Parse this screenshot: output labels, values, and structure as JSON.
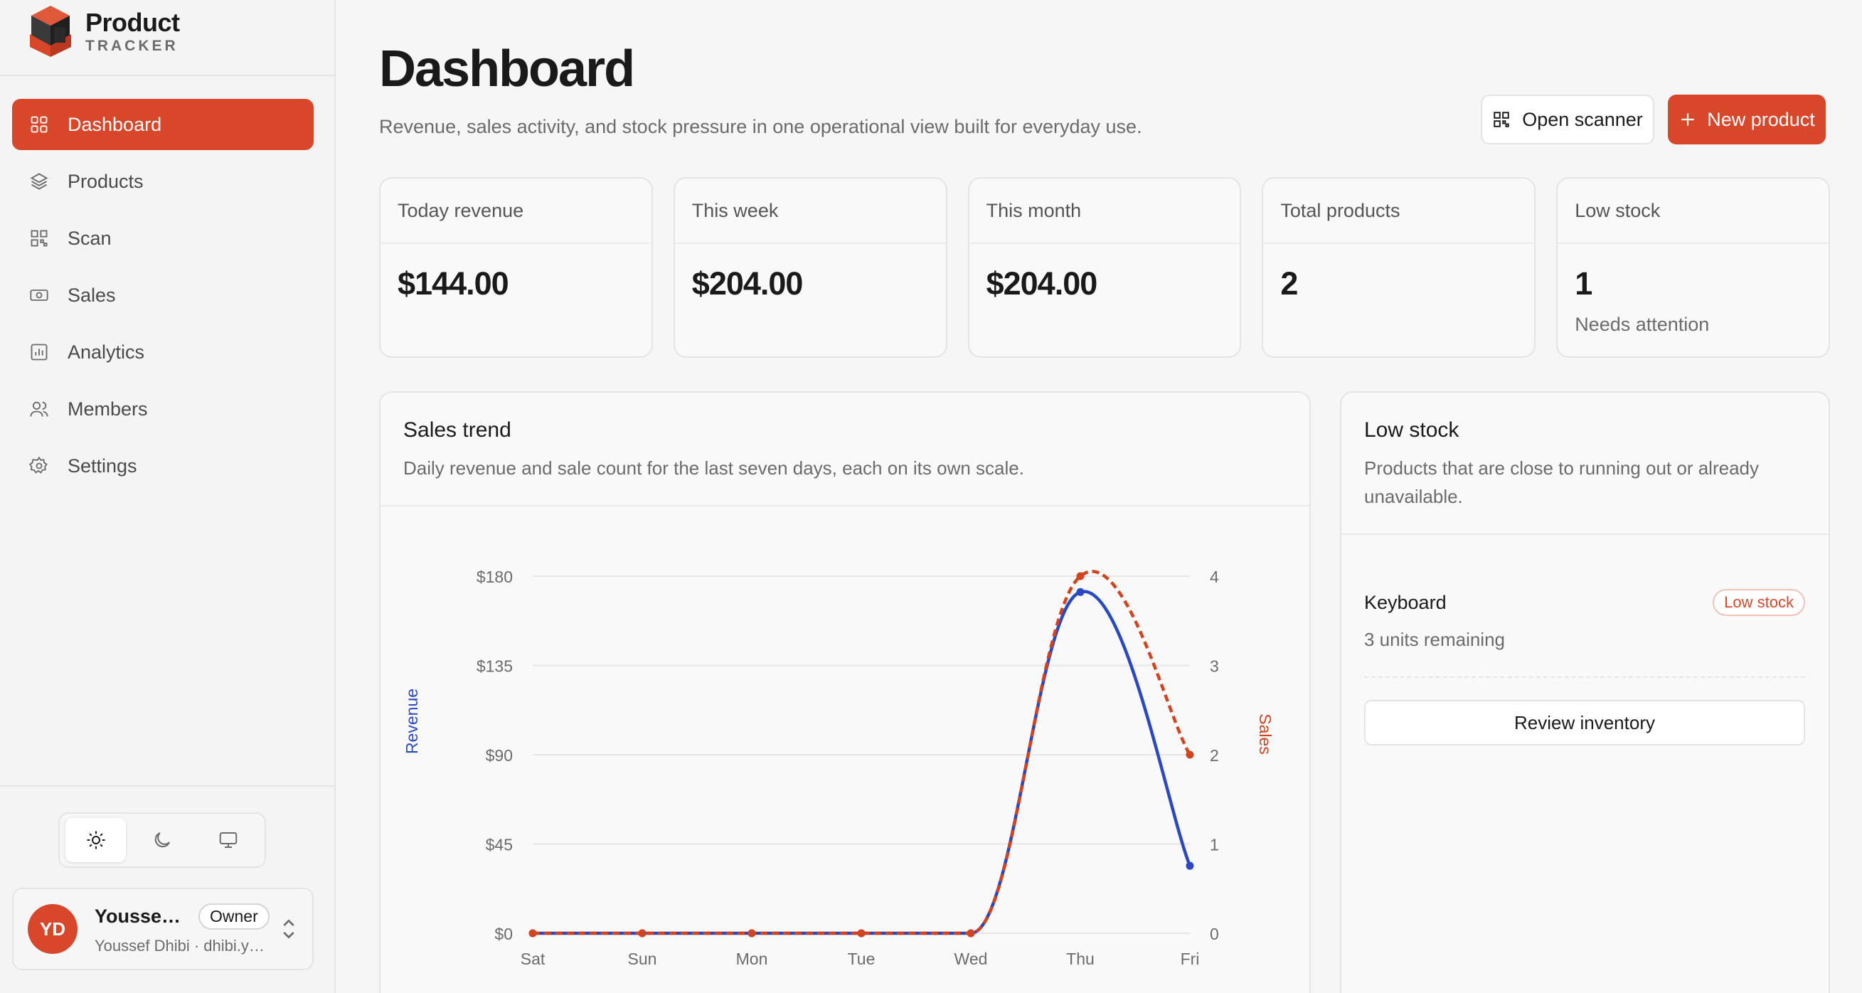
{
  "brand": {
    "line1": "Product",
    "line2": "TRACKER"
  },
  "sidebar": {
    "items": [
      {
        "label": "Dashboard",
        "icon": "dashboard-grid-icon",
        "active": true
      },
      {
        "label": "Products",
        "icon": "layers-icon"
      },
      {
        "label": "Scan",
        "icon": "qr-code-icon"
      },
      {
        "label": "Sales",
        "icon": "banknote-icon"
      },
      {
        "label": "Analytics",
        "icon": "bar-chart-icon"
      },
      {
        "label": "Members",
        "icon": "users-icon"
      },
      {
        "label": "Settings",
        "icon": "gear-icon"
      }
    ]
  },
  "theme": {
    "options": [
      "light",
      "dark",
      "system"
    ],
    "selected": "light"
  },
  "user": {
    "initials": "YD",
    "name": "Youssef…",
    "role": "Owner",
    "sub": "Youssef Dhibi · dhibi.y…"
  },
  "header": {
    "title": "Dashboard",
    "subtitle": "Revenue, sales activity, and stock pressure in one operational view built for everyday use.",
    "scanner_label": "Open scanner",
    "new_product_label": "New product"
  },
  "stats": [
    {
      "label": "Today revenue",
      "value": "$144.00",
      "note": ""
    },
    {
      "label": "This week",
      "value": "$204.00",
      "note": ""
    },
    {
      "label": "This month",
      "value": "$204.00",
      "note": ""
    },
    {
      "label": "Total products",
      "value": "2",
      "note": ""
    },
    {
      "label": "Low stock",
      "value": "1",
      "note": "Needs attention"
    }
  ],
  "trend": {
    "title": "Sales trend",
    "description": "Daily revenue and sale count for the last seven days, each on its own scale."
  },
  "chart_data": {
    "type": "line",
    "categories": [
      "Sat",
      "Sun",
      "Mon",
      "Tue",
      "Wed",
      "Thu",
      "Fri"
    ],
    "series": [
      {
        "name": "Revenue",
        "axis": "left",
        "color": "#2a48c4",
        "style": "solid",
        "values": [
          0,
          0,
          0,
          0,
          0,
          172,
          34
        ]
      },
      {
        "name": "Sales",
        "axis": "right",
        "color": "#d2441f",
        "style": "dashed",
        "values": [
          0,
          0,
          0,
          0,
          0,
          4,
          2
        ]
      }
    ],
    "ylabel": "Revenue",
    "y2label": "Sales",
    "ylim": [
      0,
      180
    ],
    "y2lim": [
      0,
      4
    ],
    "yticks": [
      "$0",
      "$45",
      "$90",
      "$135",
      "$180"
    ],
    "y2ticks": [
      "0",
      "1",
      "2",
      "3",
      "4"
    ],
    "grid": true
  },
  "lowstock": {
    "title": "Low stock",
    "description": "Products that are close to running out or already unavailable.",
    "items": [
      {
        "name": "Keyboard",
        "badge": "Low stock",
        "units": "3 units remaining"
      }
    ],
    "review_label": "Review inventory"
  },
  "colors": {
    "accent": "#d9472b",
    "revenue": "#2a48c4",
    "sales": "#d2441f"
  }
}
